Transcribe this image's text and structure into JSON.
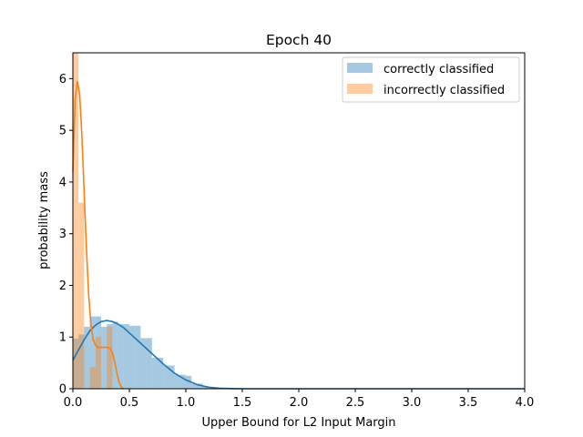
{
  "chart_data": {
    "type": "histogram_kde",
    "title": "Epoch  40",
    "xlabel": "Upper Bound for L2 Input Margin",
    "ylabel": "probability mass",
    "xlim": [
      0.0,
      4.0
    ],
    "ylim": [
      0.0,
      6.5
    ],
    "xticks": [
      "0.0",
      "0.5",
      "1.0",
      "1.5",
      "2.0",
      "2.5",
      "3.0",
      "3.5",
      "4.0"
    ],
    "yticks": [
      "0",
      "1",
      "2",
      "3",
      "4",
      "5",
      "6"
    ],
    "legend_position": "top-right",
    "series": [
      {
        "name": "correctly classified",
        "color": "#1f77b4",
        "hist_alpha": 0.4,
        "bin_width": 0.05,
        "bins": [
          [
            0.0,
            0.05,
            0.97
          ],
          [
            0.05,
            0.1,
            1.05
          ],
          [
            0.1,
            0.15,
            1.2
          ],
          [
            0.15,
            0.2,
            1.4
          ],
          [
            0.2,
            0.25,
            1.4
          ],
          [
            0.25,
            0.3,
            1.2
          ],
          [
            0.3,
            0.35,
            1.25
          ],
          [
            0.35,
            0.4,
            1.3
          ],
          [
            0.4,
            0.45,
            1.25
          ],
          [
            0.45,
            0.5,
            1.25
          ],
          [
            0.5,
            0.55,
            1.22
          ],
          [
            0.55,
            0.6,
            1.22
          ],
          [
            0.6,
            0.65,
            0.98
          ],
          [
            0.65,
            0.7,
            0.98
          ],
          [
            0.7,
            0.75,
            0.6
          ],
          [
            0.75,
            0.8,
            0.6
          ],
          [
            0.8,
            0.85,
            0.45
          ],
          [
            0.85,
            0.9,
            0.45
          ],
          [
            0.9,
            0.95,
            0.27
          ],
          [
            0.95,
            1.0,
            0.27
          ],
          [
            1.0,
            1.05,
            0.25
          ],
          [
            1.05,
            1.1,
            0.1
          ],
          [
            1.1,
            1.15,
            0.1
          ],
          [
            1.15,
            1.2,
            0.05
          ]
        ],
        "kde": [
          [
            0.0,
            0.55
          ],
          [
            0.05,
            0.75
          ],
          [
            0.1,
            0.95
          ],
          [
            0.15,
            1.12
          ],
          [
            0.2,
            1.23
          ],
          [
            0.25,
            1.3
          ],
          [
            0.3,
            1.32
          ],
          [
            0.35,
            1.3
          ],
          [
            0.4,
            1.25
          ],
          [
            0.45,
            1.18
          ],
          [
            0.5,
            1.08
          ],
          [
            0.6,
            0.88
          ],
          [
            0.7,
            0.68
          ],
          [
            0.8,
            0.48
          ],
          [
            0.9,
            0.3
          ],
          [
            1.0,
            0.17
          ],
          [
            1.1,
            0.08
          ],
          [
            1.2,
            0.03
          ],
          [
            1.3,
            0.01
          ],
          [
            1.4,
            0.003
          ],
          [
            1.5,
            0.0
          ],
          [
            2.0,
            0.0
          ],
          [
            2.5,
            0.0
          ],
          [
            3.0,
            0.0
          ],
          [
            3.5,
            0.0
          ],
          [
            4.0,
            0.0
          ]
        ]
      },
      {
        "name": "incorrectly classified",
        "color": "#ff7f0e",
        "hist_alpha": 0.4,
        "bin_width": 0.05,
        "bins": [
          [
            0.0,
            0.05,
            6.5
          ],
          [
            0.05,
            0.1,
            3.6
          ],
          [
            0.1,
            0.15,
            0.0
          ],
          [
            0.15,
            0.2,
            0.42
          ],
          [
            0.2,
            0.25,
            1.0
          ],
          [
            0.25,
            0.3,
            0.0
          ],
          [
            0.3,
            0.35,
            1.2
          ],
          [
            0.35,
            0.4,
            0.0
          ]
        ],
        "kde": [
          [
            0.0,
            4.2
          ],
          [
            0.02,
            5.6
          ],
          [
            0.04,
            5.95
          ],
          [
            0.06,
            5.7
          ],
          [
            0.08,
            4.9
          ],
          [
            0.1,
            3.8
          ],
          [
            0.12,
            2.7
          ],
          [
            0.14,
            1.8
          ],
          [
            0.16,
            1.25
          ],
          [
            0.18,
            0.95
          ],
          [
            0.2,
            0.85
          ],
          [
            0.22,
            0.8
          ],
          [
            0.26,
            0.8
          ],
          [
            0.3,
            0.8
          ],
          [
            0.33,
            0.78
          ],
          [
            0.35,
            0.7
          ],
          [
            0.37,
            0.52
          ],
          [
            0.39,
            0.3
          ],
          [
            0.41,
            0.12
          ],
          [
            0.43,
            0.03
          ],
          [
            0.45,
            0.0
          ]
        ]
      }
    ]
  }
}
